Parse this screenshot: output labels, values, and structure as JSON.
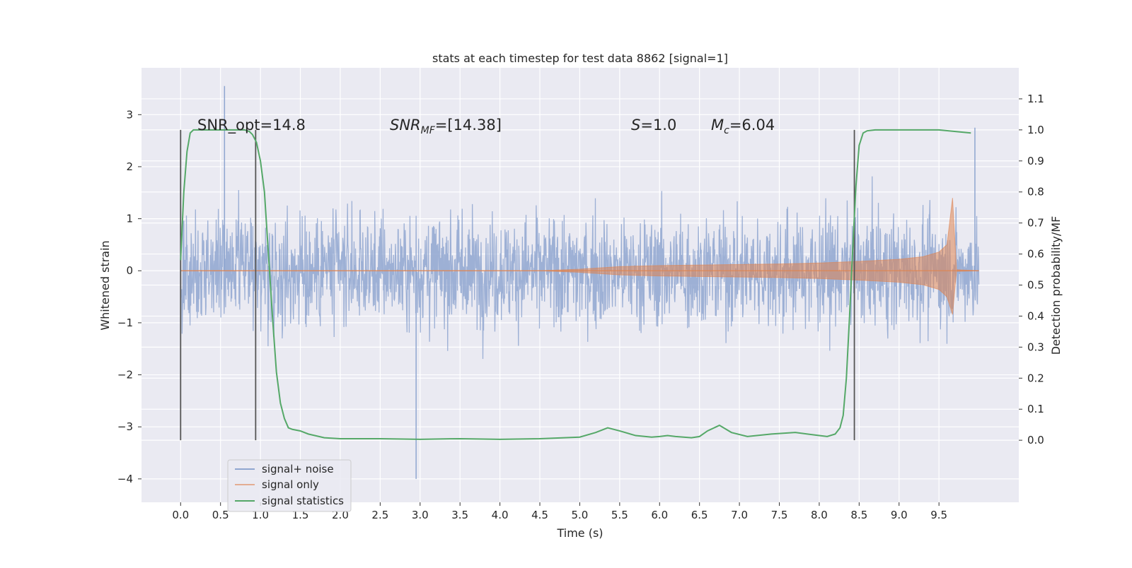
{
  "chart_data": {
    "type": "line",
    "title": "stats at each timestep for test data 8862 [signal=1]",
    "xlabel": "Time (s)",
    "ylabel": "Whitened strain",
    "ylabel_right": "Detection probability/MF",
    "xlim": [
      -0.49,
      10.5
    ],
    "ylim": [
      -4.45,
      3.9
    ],
    "ylim_right": [
      -0.2,
      1.2
    ],
    "x_ticks": [
      "0.0",
      "0.5",
      "1.0",
      "1.5",
      "2.0",
      "2.5",
      "3.0",
      "3.5",
      "4.0",
      "4.5",
      "5.0",
      "5.5",
      "6.0",
      "6.5",
      "7.0",
      "7.5",
      "8.0",
      "8.5",
      "9.0",
      "9.5"
    ],
    "x_tick_values": [
      0.0,
      0.5,
      1.0,
      1.5,
      2.0,
      2.5,
      3.0,
      3.5,
      4.0,
      4.5,
      5.0,
      5.5,
      6.0,
      6.5,
      7.0,
      7.5,
      8.0,
      8.5,
      9.0,
      9.5
    ],
    "y_ticks": [
      "3",
      "2",
      "1",
      "0",
      "−1",
      "−2",
      "−3",
      "−4"
    ],
    "y_tick_values": [
      3,
      2,
      1,
      0,
      -1,
      -2,
      -3,
      -4
    ],
    "y_right_ticks": [
      "1.1",
      "1.0",
      "0.9",
      "0.8",
      "0.7",
      "0.6",
      "0.5",
      "0.4",
      "0.3",
      "0.2",
      "0.1",
      "0.0"
    ],
    "y_right_tick_values": [
      1.1,
      1.0,
      0.9,
      0.8,
      0.7,
      0.6,
      0.5,
      0.4,
      0.3,
      0.2,
      0.1,
      0.0
    ],
    "grid": true,
    "legend_position": "lower-left",
    "annotations": {
      "snr_opt": "SNR_opt=14.8",
      "snr_mf_label": "SNR",
      "snr_mf_sub": "MF",
      "snr_mf_value": "=[14.38]",
      "s_label": "S",
      "s_value": "=1.0",
      "mc_label": "M",
      "mc_sub": "c",
      "mc_value": "=6.04"
    },
    "vertical_markers": [
      0.0,
      0.94,
      8.44
    ],
    "series": [
      {
        "name": "signal+ noise",
        "color": "#8fa6d0",
        "noise_range": [
          -2.8,
          2.8
        ],
        "peaks": [
          {
            "x": 0.55,
            "y": 3.55
          },
          {
            "x": 2.95,
            "y": -4.0
          },
          {
            "x": 9.95,
            "y": 2.75
          }
        ]
      },
      {
        "name": "signal only",
        "color": "#dd8452",
        "envelope_x": [
          0.0,
          4.5,
          5.0,
          5.5,
          6.0,
          6.5,
          7.0,
          7.5,
          8.0,
          8.5,
          9.0,
          9.3,
          9.5,
          9.6,
          9.67,
          9.72,
          10.0
        ],
        "envelope_y": [
          0.0,
          0.0,
          0.03,
          0.08,
          0.1,
          0.11,
          0.12,
          0.13,
          0.15,
          0.18,
          0.22,
          0.27,
          0.36,
          0.5,
          1.4,
          0.02,
          0.0
        ]
      },
      {
        "name": "signal statistics",
        "color": "#55a868",
        "axis": "right",
        "x": [
          0.0,
          0.04,
          0.08,
          0.12,
          0.16,
          0.2,
          0.3,
          0.5,
          0.7,
          0.8,
          0.86,
          0.9,
          0.95,
          1.0,
          1.05,
          1.1,
          1.15,
          1.2,
          1.25,
          1.3,
          1.35,
          1.4,
          1.5,
          1.6,
          1.8,
          2.0,
          2.5,
          3.0,
          3.5,
          4.0,
          4.5,
          5.0,
          5.2,
          5.35,
          5.5,
          5.7,
          5.9,
          6.0,
          6.1,
          6.2,
          6.4,
          6.5,
          6.6,
          6.75,
          6.9,
          7.1,
          7.4,
          7.7,
          8.0,
          8.1,
          8.2,
          8.26,
          8.3,
          8.34,
          8.38,
          8.42,
          8.46,
          8.5,
          8.55,
          8.6,
          8.7,
          9.0,
          9.5,
          9.9
        ],
        "y": [
          0.58,
          0.8,
          0.93,
          0.99,
          1.0,
          1.0,
          1.0,
          1.0,
          1.0,
          1.0,
          0.995,
          0.985,
          0.96,
          0.9,
          0.8,
          0.6,
          0.4,
          0.22,
          0.12,
          0.07,
          0.04,
          0.035,
          0.03,
          0.02,
          0.008,
          0.005,
          0.005,
          0.003,
          0.005,
          0.003,
          0.005,
          0.01,
          0.025,
          0.04,
          0.03,
          0.015,
          0.01,
          0.012,
          0.015,
          0.012,
          0.008,
          0.012,
          0.03,
          0.048,
          0.025,
          0.012,
          0.02,
          0.025,
          0.015,
          0.012,
          0.02,
          0.04,
          0.08,
          0.2,
          0.4,
          0.62,
          0.82,
          0.95,
          0.99,
          0.997,
          1.0,
          1.0,
          1.0,
          0.99
        ]
      }
    ]
  }
}
